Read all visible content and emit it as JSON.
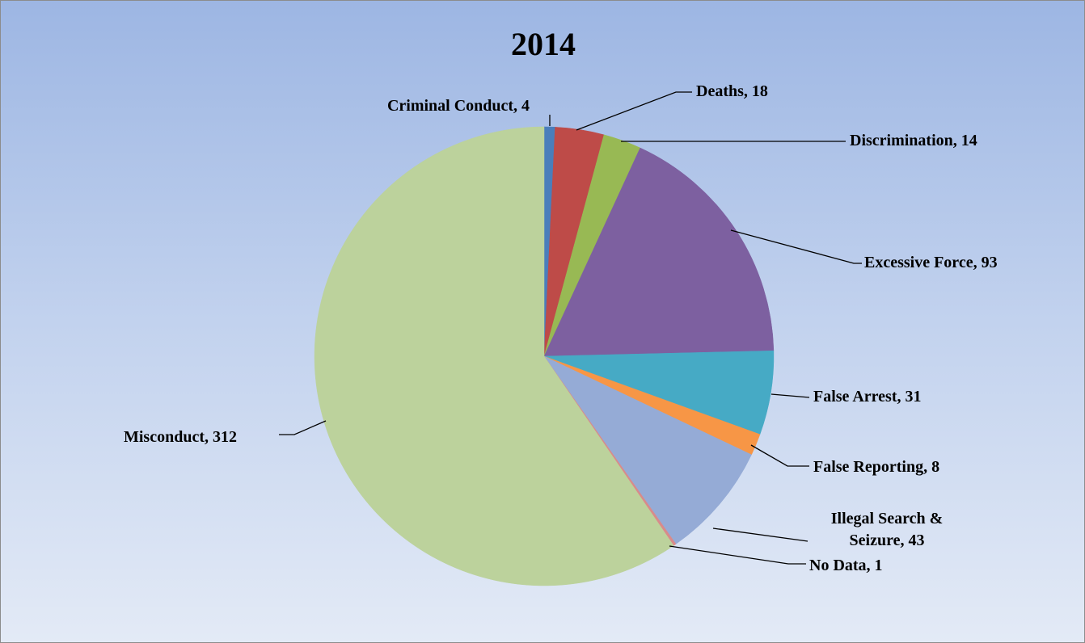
{
  "chart_data": {
    "type": "pie",
    "title": "2014",
    "start_angle_deg": 0,
    "direction": "clockwise",
    "legend": "none",
    "categories": [
      "Criminal Conduct",
      "Deaths",
      "Discrimination",
      "Excessive Force",
      "False Arrest",
      "False Reporting",
      "Illegal Search & Seizure",
      "No Data",
      "Misconduct"
    ],
    "values": [
      4,
      18,
      14,
      93,
      31,
      8,
      43,
      1,
      312
    ],
    "colors": [
      "#4a7ebb",
      "#be4b48",
      "#98b954",
      "#7d60a0",
      "#46aac5",
      "#f79646",
      "#95abd6",
      "#d88b8b",
      "#bcd29c"
    ],
    "labels": [
      [
        "Criminal Conduct, 4"
      ],
      [
        "Deaths, 18"
      ],
      [
        "Discrimination, 14"
      ],
      [
        "Excessive Force, 93"
      ],
      [
        "False Arrest, 31"
      ],
      [
        "False Reporting, 8"
      ],
      [
        "Illegal Search &",
        "Seizure, 43"
      ],
      [
        "No Data, 1"
      ],
      [
        "Misconduct, 312"
      ]
    ]
  }
}
